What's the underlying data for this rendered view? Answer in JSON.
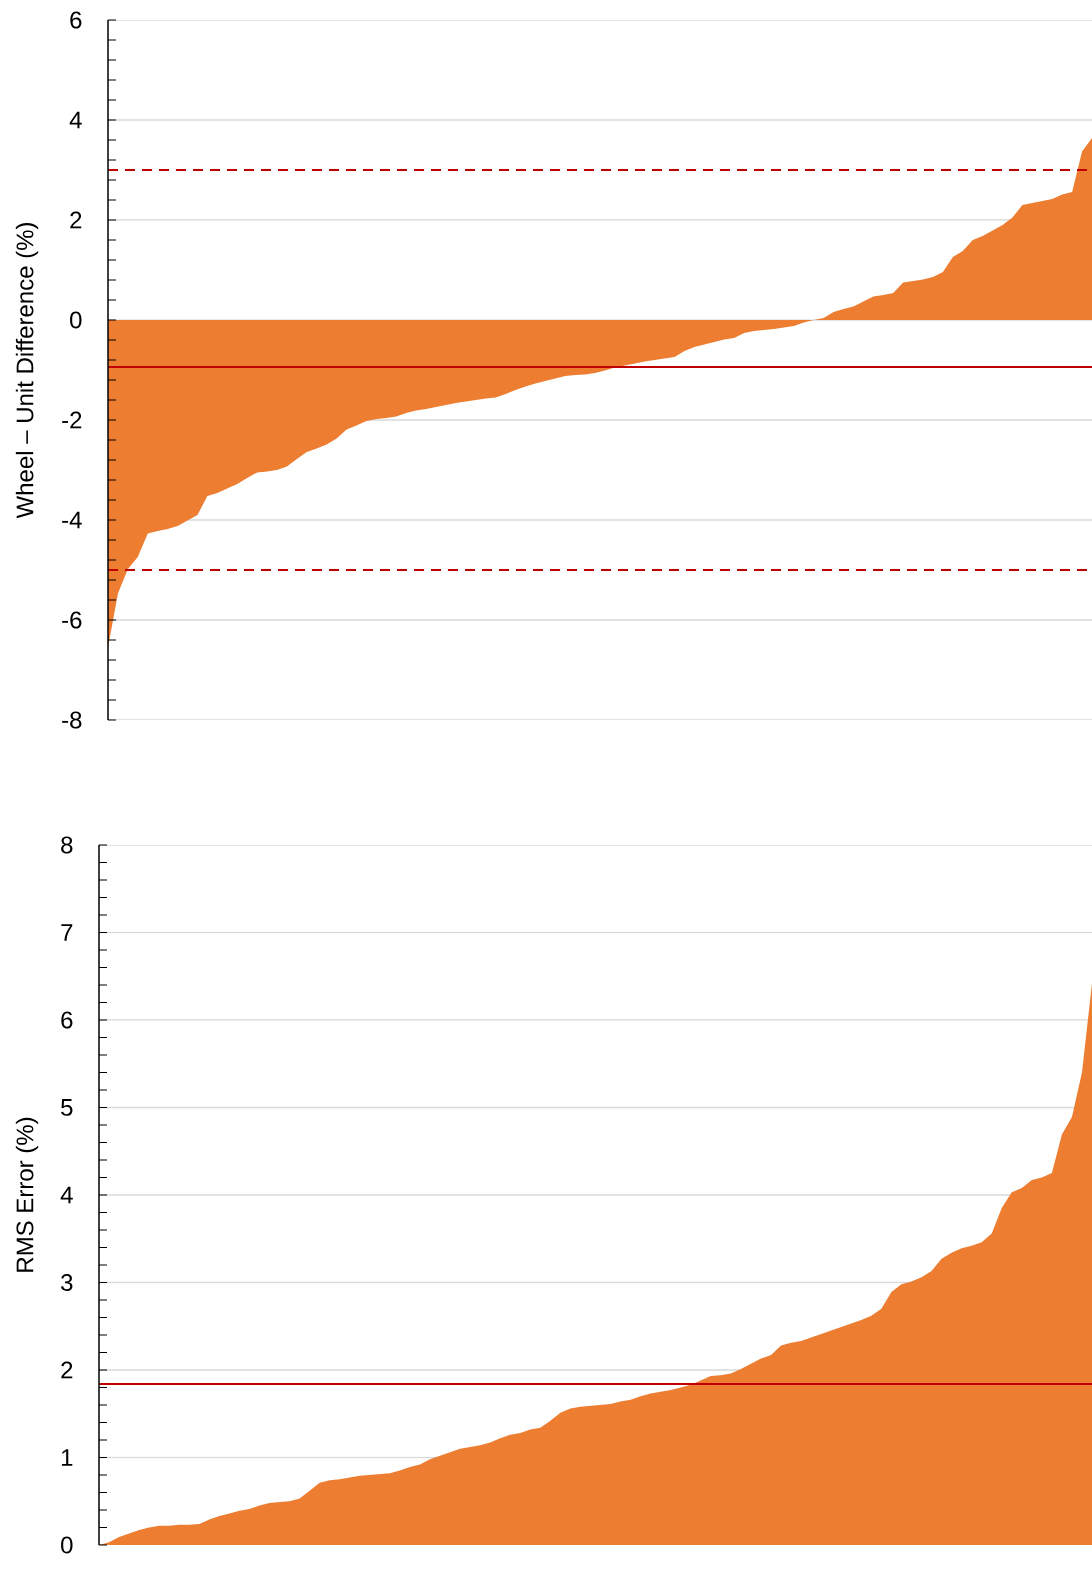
{
  "chart_data": [
    {
      "type": "area",
      "ylabel": "Wheel – Unit Difference (%)",
      "categories": [
        null,
        null,
        null,
        null,
        null,
        null,
        null,
        null,
        null,
        null,
        null,
        null,
        null,
        null,
        null,
        null,
        null,
        null,
        null,
        null,
        null,
        null,
        null,
        null,
        null,
        null,
        null,
        null,
        null,
        null,
        null,
        null,
        null,
        null,
        null,
        null,
        null,
        null,
        null,
        null,
        null,
        null,
        null,
        null,
        null,
        null,
        null,
        null,
        null,
        null,
        null,
        null,
        null,
        null,
        null,
        null,
        null,
        null,
        null,
        null,
        null,
        null,
        null,
        null,
        null,
        null,
        null,
        null,
        null,
        null,
        null,
        null,
        null,
        null,
        null,
        null,
        null,
        null,
        null,
        null,
        null,
        null,
        null,
        null,
        null,
        null,
        null,
        null,
        null,
        null,
        null,
        null,
        null,
        null,
        null,
        null,
        null,
        null,
        null,
        null
      ],
      "values": [
        -6.55,
        -5.47,
        -4.98,
        -4.74,
        -4.27,
        -4.22,
        -4.18,
        -4.12,
        -4.01,
        -3.9,
        -3.52,
        -3.46,
        -3.37,
        -3.28,
        -3.16,
        -3.05,
        -3.03,
        -3.0,
        -2.93,
        -2.78,
        -2.64,
        -2.57,
        -2.49,
        -2.37,
        -2.19,
        -2.11,
        -2.02,
        -1.98,
        -1.96,
        -1.93,
        -1.86,
        -1.81,
        -1.78,
        -1.74,
        -1.7,
        -1.66,
        -1.63,
        -1.6,
        -1.57,
        -1.55,
        -1.48,
        -1.4,
        -1.33,
        -1.27,
        -1.22,
        -1.17,
        -1.12,
        -1.1,
        -1.09,
        -1.06,
        -1.01,
        -0.95,
        -0.91,
        -0.87,
        -0.83,
        -0.8,
        -0.77,
        -0.74,
        -0.62,
        -0.54,
        -0.49,
        -0.44,
        -0.39,
        -0.36,
        -0.26,
        -0.22,
        -0.2,
        -0.18,
        -0.15,
        -0.12,
        -0.05,
        0.0,
        0.04,
        0.16,
        0.22,
        0.27,
        0.37,
        0.47,
        0.5,
        0.54,
        0.75,
        0.78,
        0.81,
        0.86,
        0.96,
        1.26,
        1.38,
        1.6,
        1.68,
        1.79,
        1.9,
        2.05,
        2.3,
        2.34,
        2.38,
        2.42,
        2.51,
        2.56,
        3.37,
        3.64
      ],
      "color": "#ed7d31",
      "ylim": [
        -8,
        6
      ],
      "yticks": [
        -8,
        {
          "value": -7.6,
          "label": null
        },
        {
          "value": -7.2,
          "label": null
        },
        {
          "value": -6.8,
          "label": null
        },
        {
          "value": -6.4,
          "label": null
        },
        -6,
        {
          "value": -5.6,
          "label": null
        },
        {
          "value": -5.2,
          "label": null
        },
        {
          "value": -4.8,
          "label": null
        },
        {
          "value": -4.4,
          "label": null
        },
        -4,
        {
          "value": -3.6,
          "label": null
        },
        {
          "value": -3.2,
          "label": null
        },
        {
          "value": -2.8,
          "label": null
        },
        {
          "value": -2.4,
          "label": null
        },
        -2,
        {
          "value": -1.6,
          "label": null
        },
        {
          "value": -1.2,
          "label": null
        },
        {
          "value": -0.8,
          "label": null
        },
        {
          "value": -0.4,
          "label": null
        },
        0,
        {
          "value": 0.4,
          "label": null
        },
        {
          "value": 0.8,
          "label": null
        },
        {
          "value": 1.2,
          "label": null
        },
        {
          "value": 1.6,
          "label": null
        },
        2,
        {
          "value": 2.4,
          "label": null
        },
        {
          "value": 2.8,
          "label": null
        },
        {
          "value": 3.2,
          "label": null
        },
        {
          "value": 3.6,
          "label": null
        },
        4,
        {
          "value": 4.4,
          "label": null
        },
        {
          "value": 4.8,
          "label": null
        },
        {
          "value": 5.2,
          "label": null
        },
        {
          "value": 5.6,
          "label": null
        },
        6
      ],
      "grid": "y",
      "ref_lines": [
        {
          "axis": "y",
          "value": 3,
          "line_style": "dashed",
          "color": "#c00000"
        },
        {
          "axis": "y",
          "value": -0.94,
          "line_style": "solid",
          "color": "#c00000"
        },
        {
          "axis": "y",
          "value": -5,
          "line_style": "dashed",
          "color": "#c00000"
        }
      ]
    },
    {
      "type": "area",
      "ylabel": "RMS Error (%)",
      "categories": [
        null,
        null,
        null,
        null,
        null,
        null,
        null,
        null,
        null,
        null,
        null,
        null,
        null,
        null,
        null,
        null,
        null,
        null,
        null,
        null,
        null,
        null,
        null,
        null,
        null,
        null,
        null,
        null,
        null,
        null,
        null,
        null,
        null,
        null,
        null,
        null,
        null,
        null,
        null,
        null,
        null,
        null,
        null,
        null,
        null,
        null,
        null,
        null,
        null,
        null,
        null,
        null,
        null,
        null,
        null,
        null,
        null,
        null,
        null,
        null,
        null,
        null,
        null,
        null,
        null,
        null,
        null,
        null,
        null,
        null,
        null,
        null,
        null,
        null,
        null,
        null,
        null,
        null,
        null,
        null,
        null,
        null,
        null,
        null,
        null,
        null,
        null,
        null,
        null,
        null,
        null,
        null,
        null,
        null,
        null,
        null,
        null,
        null,
        null,
        null
      ],
      "values": [
        0.0,
        0.03,
        0.09,
        0.13,
        0.17,
        0.2,
        0.22,
        0.22,
        0.23,
        0.23,
        0.24,
        0.29,
        0.33,
        0.36,
        0.39,
        0.41,
        0.45,
        0.48,
        0.49,
        0.5,
        0.53,
        0.62,
        0.71,
        0.74,
        0.75,
        0.77,
        0.79,
        0.8,
        0.81,
        0.82,
        0.85,
        0.89,
        0.92,
        0.98,
        1.02,
        1.06,
        1.1,
        1.12,
        1.14,
        1.17,
        1.22,
        1.26,
        1.28,
        1.32,
        1.34,
        1.42,
        1.51,
        1.56,
        1.58,
        1.59,
        1.6,
        1.61,
        1.64,
        1.66,
        1.7,
        1.73,
        1.75,
        1.77,
        1.8,
        1.83,
        1.88,
        1.93,
        1.94,
        1.96,
        2.01,
        2.07,
        2.13,
        2.17,
        2.28,
        2.31,
        2.33,
        2.37,
        2.41,
        2.45,
        2.49,
        2.53,
        2.57,
        2.62,
        2.7,
        2.89,
        2.98,
        3.01,
        3.06,
        3.13,
        3.27,
        3.34,
        3.39,
        3.42,
        3.46,
        3.56,
        3.85,
        4.03,
        4.08,
        4.17,
        4.2,
        4.25,
        4.69,
        4.89,
        5.4,
        6.42
      ],
      "color": "#ed7d31",
      "ylim": [
        0,
        8
      ],
      "yticks": [
        0,
        {
          "value": 0.2,
          "label": null
        },
        {
          "value": 0.4,
          "label": null
        },
        {
          "value": 0.6,
          "label": null
        },
        {
          "value": 0.8,
          "label": null
        },
        1,
        {
          "value": 1.2,
          "label": null
        },
        {
          "value": 1.4,
          "label": null
        },
        {
          "value": 1.6,
          "label": null
        },
        {
          "value": 1.8,
          "label": null
        },
        2,
        {
          "value": 2.2,
          "label": null
        },
        {
          "value": 2.4,
          "label": null
        },
        {
          "value": 2.6,
          "label": null
        },
        {
          "value": 2.8,
          "label": null
        },
        3,
        {
          "value": 3.2,
          "label": null
        },
        {
          "value": 3.4,
          "label": null
        },
        {
          "value": 3.6,
          "label": null
        },
        {
          "value": 3.8,
          "label": null
        },
        4,
        {
          "value": 4.2,
          "label": null
        },
        {
          "value": 4.4,
          "label": null
        },
        {
          "value": 4.6,
          "label": null
        },
        {
          "value": 4.8,
          "label": null
        },
        5,
        {
          "value": 5.2,
          "label": null
        },
        {
          "value": 5.4,
          "label": null
        },
        {
          "value": 5.6,
          "label": null
        },
        {
          "value": 5.8,
          "label": null
        },
        6,
        {
          "value": 6.2,
          "label": null
        },
        {
          "value": 6.4,
          "label": null
        },
        {
          "value": 6.6,
          "label": null
        },
        {
          "value": 6.8,
          "label": null
        },
        7,
        {
          "value": 7.2,
          "label": null
        },
        {
          "value": 7.4,
          "label": null
        },
        {
          "value": 7.6,
          "label": null
        },
        {
          "value": 7.8,
          "label": null
        },
        8
      ],
      "grid": "y",
      "ref_lines": [
        {
          "axis": "y",
          "value": 1.84,
          "line_style": "solid",
          "color": "#c00000"
        }
      ]
    }
  ]
}
